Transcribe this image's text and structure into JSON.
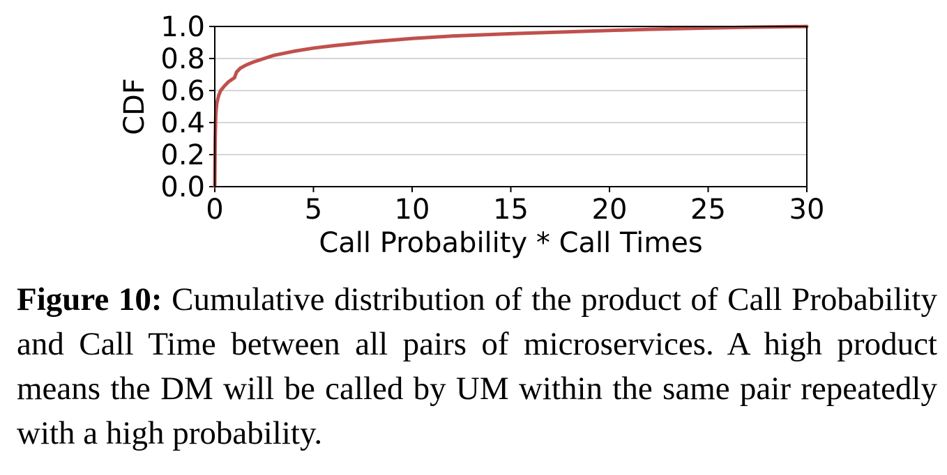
{
  "chart_data": {
    "type": "line",
    "xlabel": "Call Probability * Call Times",
    "ylabel": "CDF",
    "xlim": [
      0,
      30
    ],
    "ylim": [
      0,
      1
    ],
    "x_ticks": [
      "0",
      "5",
      "10",
      "15",
      "20",
      "25",
      "30"
    ],
    "y_ticks": [
      "0.0",
      "0.2",
      "0.4",
      "0.6",
      "0.8",
      "1.0"
    ],
    "grid": "horizontal",
    "series": [
      {
        "color": "#c0504d",
        "x": [
          0,
          0.02,
          0.05,
          0.1,
          0.2,
          0.3,
          0.5,
          0.7,
          1.0,
          1.1,
          1.3,
          1.6,
          2.0,
          2.5,
          3.0,
          4.0,
          5.0,
          6.0,
          8.0,
          10.0,
          12.0,
          15.0,
          18.0,
          20.0,
          22.0,
          25.0,
          27.0,
          30.0
        ],
        "y": [
          0,
          0.3,
          0.45,
          0.52,
          0.57,
          0.6,
          0.63,
          0.655,
          0.68,
          0.715,
          0.74,
          0.76,
          0.78,
          0.8,
          0.82,
          0.845,
          0.865,
          0.88,
          0.905,
          0.925,
          0.94,
          0.955,
          0.967,
          0.975,
          0.982,
          0.99,
          0.995,
          1.0
        ]
      }
    ]
  },
  "caption": {
    "label": "Figure 10:",
    "text": " Cumulative distribution of the product of Call Probability and Call Time between all pairs of microservices. A high product means the DM will be called by UM within the same pair repeatedly with a high probability."
  }
}
